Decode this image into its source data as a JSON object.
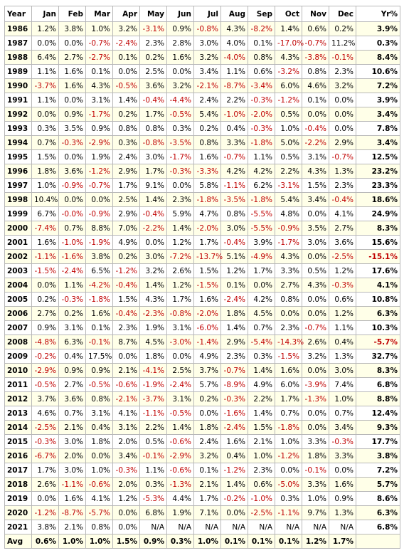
{
  "table": {
    "header": [
      "Year",
      "Jan",
      "Feb",
      "Mar",
      "Apr",
      "May",
      "Jun",
      "Jul",
      "Aug",
      "Sep",
      "Oct",
      "Nov",
      "Dec",
      "Yr%"
    ],
    "rows": [
      [
        "1986",
        "1.2%",
        "3.8%",
        "1.0%",
        "3.2%",
        "-3.1%",
        "0.9%",
        "-0.8%",
        "4.3%",
        "-8.2%",
        "1.4%",
        "0.6%",
        "0.2%",
        "3.9%"
      ],
      [
        "1987",
        "0.0%",
        "0.0%",
        "-0.7%",
        "-2.4%",
        "2.3%",
        "2.8%",
        "3.0%",
        "4.0%",
        "0.1%",
        "-17.0%",
        "-0.7%",
        "11.2%",
        "0.3%"
      ],
      [
        "1988",
        "6.4%",
        "2.7%",
        "-2.7%",
        "0.1%",
        "0.2%",
        "1.6%",
        "3.2%",
        "-4.0%",
        "0.8%",
        "4.3%",
        "-3.8%",
        "-0.1%",
        "8.4%"
      ],
      [
        "1989",
        "1.1%",
        "1.6%",
        "0.1%",
        "0.0%",
        "2.5%",
        "0.0%",
        "3.4%",
        "1.1%",
        "0.6%",
        "-3.2%",
        "0.8%",
        "2.3%",
        "10.6%"
      ],
      [
        "1990",
        "-3.7%",
        "1.6%",
        "4.3%",
        "-0.5%",
        "3.6%",
        "3.2%",
        "-2.1%",
        "-8.7%",
        "-3.4%",
        "6.0%",
        "4.6%",
        "3.2%",
        "7.2%"
      ],
      [
        "1991",
        "1.1%",
        "0.0%",
        "3.1%",
        "1.4%",
        "-0.4%",
        "-4.4%",
        "2.4%",
        "2.2%",
        "-0.3%",
        "-1.2%",
        "0.1%",
        "0.0%",
        "3.9%"
      ],
      [
        "1992",
        "0.0%",
        "0.9%",
        "-1.7%",
        "0.2%",
        "1.7%",
        "-0.5%",
        "5.4%",
        "-1.0%",
        "-2.0%",
        "0.5%",
        "0.0%",
        "0.0%",
        "3.4%"
      ],
      [
        "1993",
        "0.3%",
        "3.5%",
        "0.9%",
        "0.8%",
        "0.8%",
        "0.3%",
        "0.2%",
        "0.4%",
        "-0.3%",
        "1.0%",
        "-0.4%",
        "0.0%",
        "7.8%"
      ],
      [
        "1994",
        "0.7%",
        "-0.3%",
        "-2.9%",
        "0.3%",
        "-0.8%",
        "-3.5%",
        "0.8%",
        "3.3%",
        "-1.8%",
        "5.0%",
        "-2.2%",
        "2.9%",
        "3.4%"
      ],
      [
        "1995",
        "1.5%",
        "0.0%",
        "1.9%",
        "2.4%",
        "3.0%",
        "-1.7%",
        "1.6%",
        "-0.7%",
        "1.1%",
        "0.5%",
        "3.1%",
        "-0.7%",
        "12.5%"
      ],
      [
        "1996",
        "1.8%",
        "3.6%",
        "-1.2%",
        "2.9%",
        "1.7%",
        "-0.3%",
        "-3.3%",
        "4.2%",
        "4.2%",
        "2.2%",
        "4.3%",
        "1.3%",
        "23.2%"
      ],
      [
        "1997",
        "1.0%",
        "-0.9%",
        "-0.7%",
        "1.7%",
        "9.1%",
        "0.0%",
        "5.8%",
        "-1.1%",
        "6.2%",
        "-3.1%",
        "1.5%",
        "2.3%",
        "23.3%"
      ],
      [
        "1998",
        "10.4%",
        "0.0%",
        "0.0%",
        "2.5%",
        "1.4%",
        "2.3%",
        "-1.8%",
        "-3.5%",
        "-1.8%",
        "5.4%",
        "3.4%",
        "-0.4%",
        "18.6%"
      ],
      [
        "1999",
        "6.7%",
        "-0.0%",
        "-0.9%",
        "2.9%",
        "-0.4%",
        "5.9%",
        "4.7%",
        "0.8%",
        "-5.5%",
        "4.8%",
        "0.0%",
        "4.1%",
        "24.9%"
      ],
      [
        "2000",
        "-7.4%",
        "0.7%",
        "8.8%",
        "7.0%",
        "-2.2%",
        "1.4%",
        "-2.0%",
        "3.0%",
        "-5.5%",
        "-0.9%",
        "3.5%",
        "2.7%",
        "8.3%"
      ],
      [
        "2001",
        "1.6%",
        "-1.0%",
        "-1.9%",
        "4.9%",
        "0.0%",
        "1.2%",
        "1.7%",
        "-0.4%",
        "3.9%",
        "-1.7%",
        "3.0%",
        "3.6%",
        "15.6%"
      ],
      [
        "2002",
        "-1.1%",
        "-1.6%",
        "3.8%",
        "0.2%",
        "3.0%",
        "-7.2%",
        "-13.7%",
        "5.1%",
        "-4.9%",
        "4.3%",
        "0.0%",
        "-2.5%",
        "-15.1%"
      ],
      [
        "2003",
        "-1.5%",
        "-2.4%",
        "6.5%",
        "-1.2%",
        "3.2%",
        "2.6%",
        "1.5%",
        "1.2%",
        "1.7%",
        "3.3%",
        "0.5%",
        "1.2%",
        "17.6%"
      ],
      [
        "2004",
        "0.0%",
        "1.1%",
        "-4.2%",
        "-0.4%",
        "1.4%",
        "1.2%",
        "-1.5%",
        "0.1%",
        "0.0%",
        "2.7%",
        "4.3%",
        "-0.3%",
        "4.1%"
      ],
      [
        "2005",
        "0.2%",
        "-0.3%",
        "-1.8%",
        "1.5%",
        "4.3%",
        "1.7%",
        "1.6%",
        "-2.4%",
        "4.2%",
        "0.8%",
        "0.0%",
        "0.6%",
        "10.8%"
      ],
      [
        "2006",
        "2.7%",
        "0.2%",
        "1.6%",
        "-0.4%",
        "-2.3%",
        "-0.8%",
        "-2.0%",
        "1.8%",
        "4.5%",
        "0.0%",
        "0.0%",
        "1.2%",
        "6.3%"
      ],
      [
        "2007",
        "0.9%",
        "3.1%",
        "0.1%",
        "2.3%",
        "1.9%",
        "3.1%",
        "-6.0%",
        "1.4%",
        "0.7%",
        "2.3%",
        "-0.7%",
        "1.1%",
        "10.3%"
      ],
      [
        "2008",
        "-4.8%",
        "6.3%",
        "-0.1%",
        "8.7%",
        "4.5%",
        "-3.0%",
        "-1.4%",
        "2.9%",
        "-5.4%",
        "-14.3%",
        "2.6%",
        "0.4%",
        "-5.7%"
      ],
      [
        "2009",
        "-0.2%",
        "0.4%",
        "17.5%",
        "0.0%",
        "1.8%",
        "0.0%",
        "4.9%",
        "2.3%",
        "0.3%",
        "-1.5%",
        "3.2%",
        "1.3%",
        "32.7%"
      ],
      [
        "2010",
        "-2.9%",
        "0.9%",
        "0.9%",
        "2.1%",
        "-4.1%",
        "2.5%",
        "3.7%",
        "-0.7%",
        "1.4%",
        "1.6%",
        "0.0%",
        "3.0%",
        "8.3%"
      ],
      [
        "2011",
        "-0.5%",
        "2.7%",
        "-0.5%",
        "-0.6%",
        "-1.9%",
        "-2.4%",
        "5.7%",
        "-8.9%",
        "4.9%",
        "6.0%",
        "-3.9%",
        "7.4%",
        "6.8%"
      ],
      [
        "2012",
        "3.7%",
        "3.6%",
        "0.8%",
        "-2.1%",
        "-3.7%",
        "3.1%",
        "0.2%",
        "-0.3%",
        "2.2%",
        "1.7%",
        "-1.3%",
        "1.0%",
        "8.8%"
      ],
      [
        "2013",
        "4.6%",
        "0.7%",
        "3.1%",
        "4.1%",
        "-1.1%",
        "-0.5%",
        "0.0%",
        "-1.6%",
        "1.4%",
        "0.7%",
        "0.0%",
        "0.7%",
        "12.4%"
      ],
      [
        "2014",
        "-2.5%",
        "2.1%",
        "0.4%",
        "3.1%",
        "2.2%",
        "1.4%",
        "1.8%",
        "-2.4%",
        "1.5%",
        "-1.8%",
        "0.0%",
        "3.4%",
        "9.3%"
      ],
      [
        "2015",
        "-0.3%",
        "3.0%",
        "1.8%",
        "2.0%",
        "0.5%",
        "-0.6%",
        "2.4%",
        "1.6%",
        "2.1%",
        "1.0%",
        "3.3%",
        "-0.3%",
        "17.7%"
      ],
      [
        "2016",
        "-6.7%",
        "2.0%",
        "0.0%",
        "3.4%",
        "-0.1%",
        "-2.9%",
        "3.2%",
        "0.4%",
        "1.0%",
        "-1.2%",
        "1.8%",
        "3.3%",
        "3.8%"
      ],
      [
        "2017",
        "1.7%",
        "3.0%",
        "1.0%",
        "-0.3%",
        "1.1%",
        "-0.6%",
        "0.1%",
        "-1.2%",
        "2.3%",
        "0.0%",
        "-0.1%",
        "0.0%",
        "7.2%"
      ],
      [
        "2018",
        "2.6%",
        "-1.1%",
        "-0.6%",
        "2.0%",
        "0.3%",
        "-1.3%",
        "2.1%",
        "1.4%",
        "0.6%",
        "-5.0%",
        "3.3%",
        "1.6%",
        "5.7%"
      ],
      [
        "2019",
        "0.0%",
        "1.6%",
        "4.1%",
        "1.2%",
        "-5.3%",
        "4.4%",
        "1.7%",
        "-0.2%",
        "-1.0%",
        "0.3%",
        "1.0%",
        "0.9%",
        "8.6%"
      ],
      [
        "2020",
        "-1.2%",
        "-8.7%",
        "-5.7%",
        "0.0%",
        "6.8%",
        "1.9%",
        "7.1%",
        "0.0%",
        "-2.5%",
        "-1.1%",
        "9.7%",
        "1.3%",
        "6.3%"
      ],
      [
        "2021",
        "3.8%",
        "2.1%",
        "0.8%",
        "0.0%",
        "N/A",
        "N/A",
        "N/A",
        "N/A",
        "N/A",
        "N/A",
        "N/A",
        "N/A",
        "6.8%"
      ],
      [
        "Avg",
        "0.6%",
        "1.0%",
        "1.0%",
        "1.5%",
        "0.9%",
        "0.3%",
        "1.0%",
        "0.1%",
        "0.1%",
        "0.1%",
        "1.2%",
        "1.7%"
      ]
    ]
  }
}
